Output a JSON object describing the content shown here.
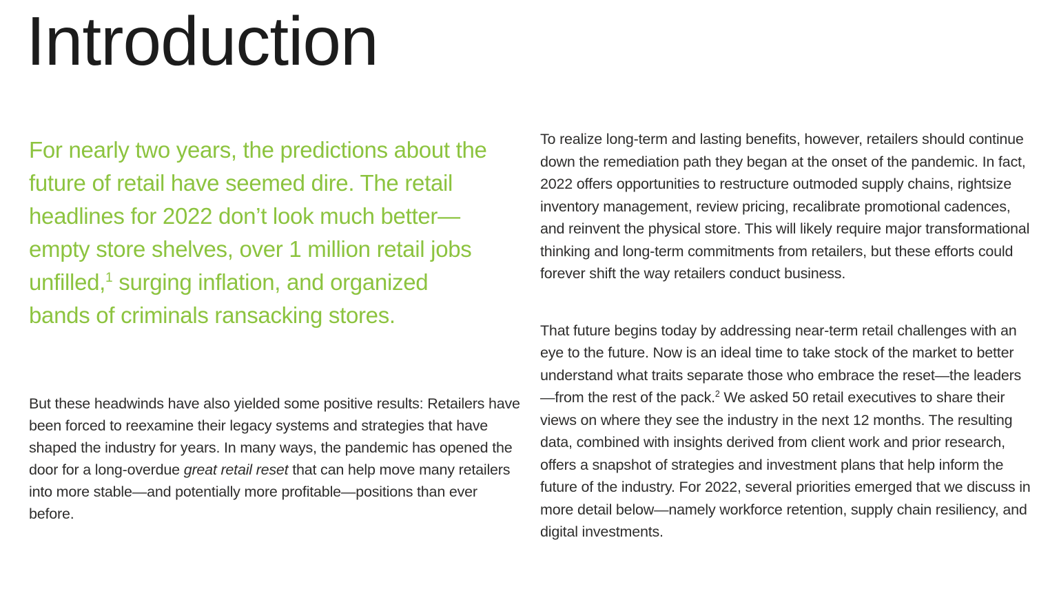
{
  "page": {
    "title": "Introduction",
    "background_color": "#ffffff",
    "accent_color": "#8cc33f",
    "body_text_color": "#2e2d2c"
  },
  "lead_paragraph": {
    "part1": "For nearly two years, the predictions about the future of retail have seemed dire. The retail headlines for 2022 don’t look much better—empty store shelves, over 1 million retail jobs unfilled,",
    "footnote_marker": "1",
    "part2": " surging inflation, and organized bands of criminals ransacking stores."
  },
  "left_column": {
    "paragraph": {
      "part1": "But these headwinds have also yielded some positive results: Retailers have been forced to reexamine their legacy systems and strategies that have shaped the industry for years. In many ways, the pandemic has opened the door for a long-overdue ",
      "italic_phrase": "great retail reset",
      "part2": " that can help move many retailers into more stable—and potentially more profitable—positions than ever before."
    }
  },
  "right_column": {
    "paragraph_1": "To realize long-term and lasting benefits, however, retailers should continue down the remediation path they began at the onset of the pandemic. In fact, 2022 offers opportunities to restructure outmoded supply chains, rightsize inventory management, review pricing, recalibrate promotional cadences, and reinvent the physical store. This will likely require major transformational thinking and long-term commitments from retailers, but these efforts could forever shift the way retailers conduct business.",
    "paragraph_2": {
      "part1": "That future begins today by addressing near-term retail challenges with an eye to the future. Now is an ideal time to take stock of the market to better understand what traits separate those who embrace the reset—the leaders—from the rest of the pack.",
      "footnote_marker": "2",
      "part2": " We asked 50 retail executives to share their views on where they see the industry in the next 12 months. The resulting data, combined with insights derived from client work and prior research, offers a snapshot of strategies and investment plans that help inform the future of the industry. For 2022, several priorities emerged that we discuss in more detail below—namely workforce retention, supply chain resiliency, and digital investments."
    }
  }
}
